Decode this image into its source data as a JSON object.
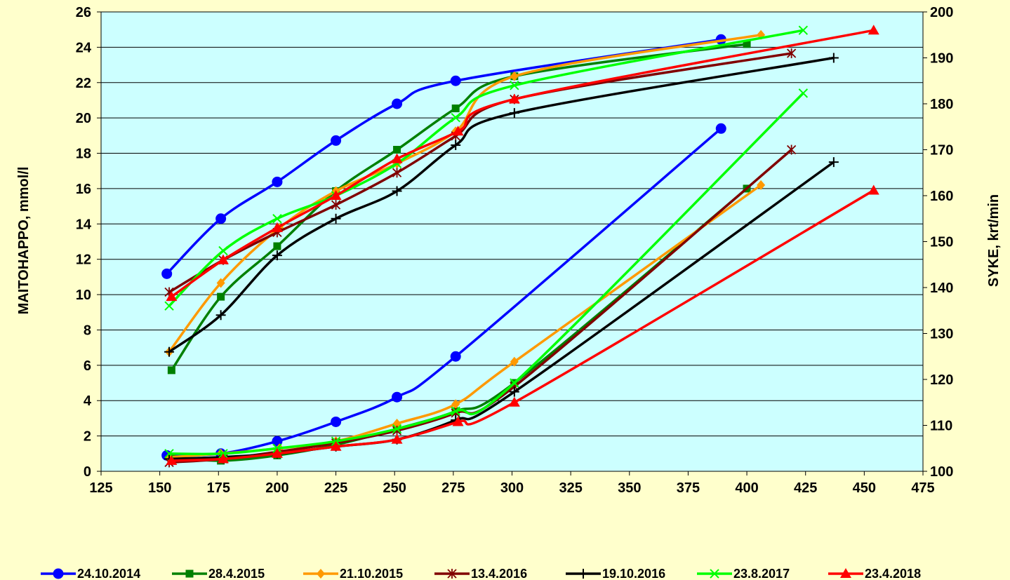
{
  "chart_data": {
    "type": "line",
    "background_color": "#FFFFCC",
    "plot_background_color": "#CCFFFF",
    "xlabel": "",
    "ylabel": "MAITOHAPPO, mmol/l",
    "y2label": "SYKE, krt/min",
    "xlim": [
      125,
      475
    ],
    "ylim": [
      0,
      26
    ],
    "y2lim": [
      100,
      200
    ],
    "x_ticks": [
      125,
      150,
      175,
      200,
      225,
      250,
      275,
      300,
      325,
      350,
      375,
      400,
      425,
      450,
      475
    ],
    "y_ticks": [
      0,
      2,
      4,
      6,
      8,
      10,
      12,
      14,
      16,
      18,
      20,
      22,
      24,
      26
    ],
    "y2_ticks": [
      100,
      110,
      120,
      130,
      140,
      150,
      160,
      170,
      180,
      190,
      200
    ],
    "grid": "horizontal",
    "legend_position": "bottom",
    "series": [
      {
        "name": "24.10.2014",
        "color": "#0000FF",
        "marker": "circle",
        "heart_rate": [
          [
            153,
            143
          ],
          [
            176,
            155
          ],
          [
            200,
            163
          ],
          [
            225,
            172
          ],
          [
            251,
            180
          ],
          [
            276,
            185
          ],
          [
            389,
            194
          ]
        ],
        "lactate": [
          [
            153,
            0.9
          ],
          [
            176,
            1.0
          ],
          [
            200,
            1.7
          ],
          [
            225,
            2.8
          ],
          [
            251,
            4.2
          ],
          [
            276,
            6.5
          ],
          [
            389,
            19.4
          ]
        ]
      },
      {
        "name": "28.4.2015",
        "color": "#008000",
        "marker": "square",
        "heart_rate": [
          [
            155,
            122
          ],
          [
            176,
            138
          ],
          [
            200,
            149
          ],
          [
            225,
            161
          ],
          [
            251,
            170
          ],
          [
            276,
            179
          ],
          [
            301,
            186
          ],
          [
            400,
            193
          ]
        ],
        "lactate": [
          [
            155,
            0.8
          ],
          [
            176,
            0.6
          ],
          [
            200,
            0.9
          ],
          [
            225,
            1.5
          ],
          [
            251,
            2.4
          ],
          [
            276,
            3.4
          ],
          [
            301,
            5.0
          ],
          [
            400,
            16.0
          ]
        ]
      },
      {
        "name": "21.10.2015",
        "color": "#FF9900",
        "marker": "diamond",
        "heart_rate": [
          [
            154,
            126
          ],
          [
            176,
            141
          ],
          [
            201,
            153
          ],
          [
            225,
            161
          ],
          [
            251,
            167
          ],
          [
            276,
            174
          ],
          [
            301,
            186
          ],
          [
            406,
            195
          ]
        ],
        "lactate": [
          [
            154,
            0.8
          ],
          [
            176,
            1.0
          ],
          [
            201,
            1.3
          ],
          [
            225,
            1.7
          ],
          [
            251,
            2.7
          ],
          [
            276,
            3.8
          ],
          [
            301,
            6.2
          ],
          [
            406,
            16.2
          ]
        ]
      },
      {
        "name": "13.4.2016",
        "color": "#800000",
        "marker": "star",
        "heart_rate": [
          [
            154,
            139
          ],
          [
            177,
            146
          ],
          [
            200,
            152
          ],
          [
            225,
            158
          ],
          [
            251,
            165
          ],
          [
            276,
            173
          ],
          [
            301,
            181
          ],
          [
            419,
            191
          ]
        ],
        "lactate": [
          [
            154,
            0.5
          ],
          [
            177,
            0.7
          ],
          [
            200,
            1.1
          ],
          [
            225,
            1.6
          ],
          [
            251,
            2.3
          ],
          [
            276,
            3.3
          ],
          [
            301,
            4.8
          ],
          [
            419,
            18.2
          ]
        ]
      },
      {
        "name": "19.10.2016",
        "color": "#000000",
        "marker": "plus",
        "heart_rate": [
          [
            154,
            126
          ],
          [
            176,
            134
          ],
          [
            200,
            147
          ],
          [
            225,
            155
          ],
          [
            251,
            161
          ],
          [
            276,
            171
          ],
          [
            301,
            178
          ],
          [
            437,
            190
          ]
        ],
        "lactate": [
          [
            154,
            0.7
          ],
          [
            176,
            0.8
          ],
          [
            200,
            1.0
          ],
          [
            225,
            1.4
          ],
          [
            251,
            1.8
          ],
          [
            276,
            2.9
          ],
          [
            301,
            4.5
          ],
          [
            437,
            17.5
          ]
        ]
      },
      {
        "name": "23.8.2017",
        "color": "#00FF00",
        "marker": "x",
        "heart_rate": [
          [
            154,
            136
          ],
          [
            177,
            148
          ],
          [
            200,
            155
          ],
          [
            225,
            160
          ],
          [
            251,
            167
          ],
          [
            276,
            177
          ],
          [
            301,
            184
          ],
          [
            424,
            196
          ]
        ],
        "lactate": [
          [
            154,
            1.0
          ],
          [
            177,
            1.0
          ],
          [
            200,
            1.3
          ],
          [
            225,
            1.7
          ],
          [
            251,
            2.4
          ],
          [
            276,
            3.4
          ],
          [
            301,
            5.0
          ],
          [
            424,
            21.4
          ]
        ]
      },
      {
        "name": "23.4.2018",
        "color": "#FF0000",
        "marker": "triangle",
        "heart_rate": [
          [
            155,
            138
          ],
          [
            177,
            146
          ],
          [
            200,
            153
          ],
          [
            225,
            160
          ],
          [
            251,
            168
          ],
          [
            277,
            174
          ],
          [
            301,
            181
          ],
          [
            454,
            196
          ]
        ],
        "lactate": [
          [
            155,
            0.6
          ],
          [
            177,
            0.7
          ],
          [
            200,
            1.0
          ],
          [
            225,
            1.4
          ],
          [
            251,
            1.8
          ],
          [
            277,
            2.8
          ],
          [
            301,
            3.9
          ],
          [
            454,
            15.9
          ]
        ]
      }
    ]
  }
}
